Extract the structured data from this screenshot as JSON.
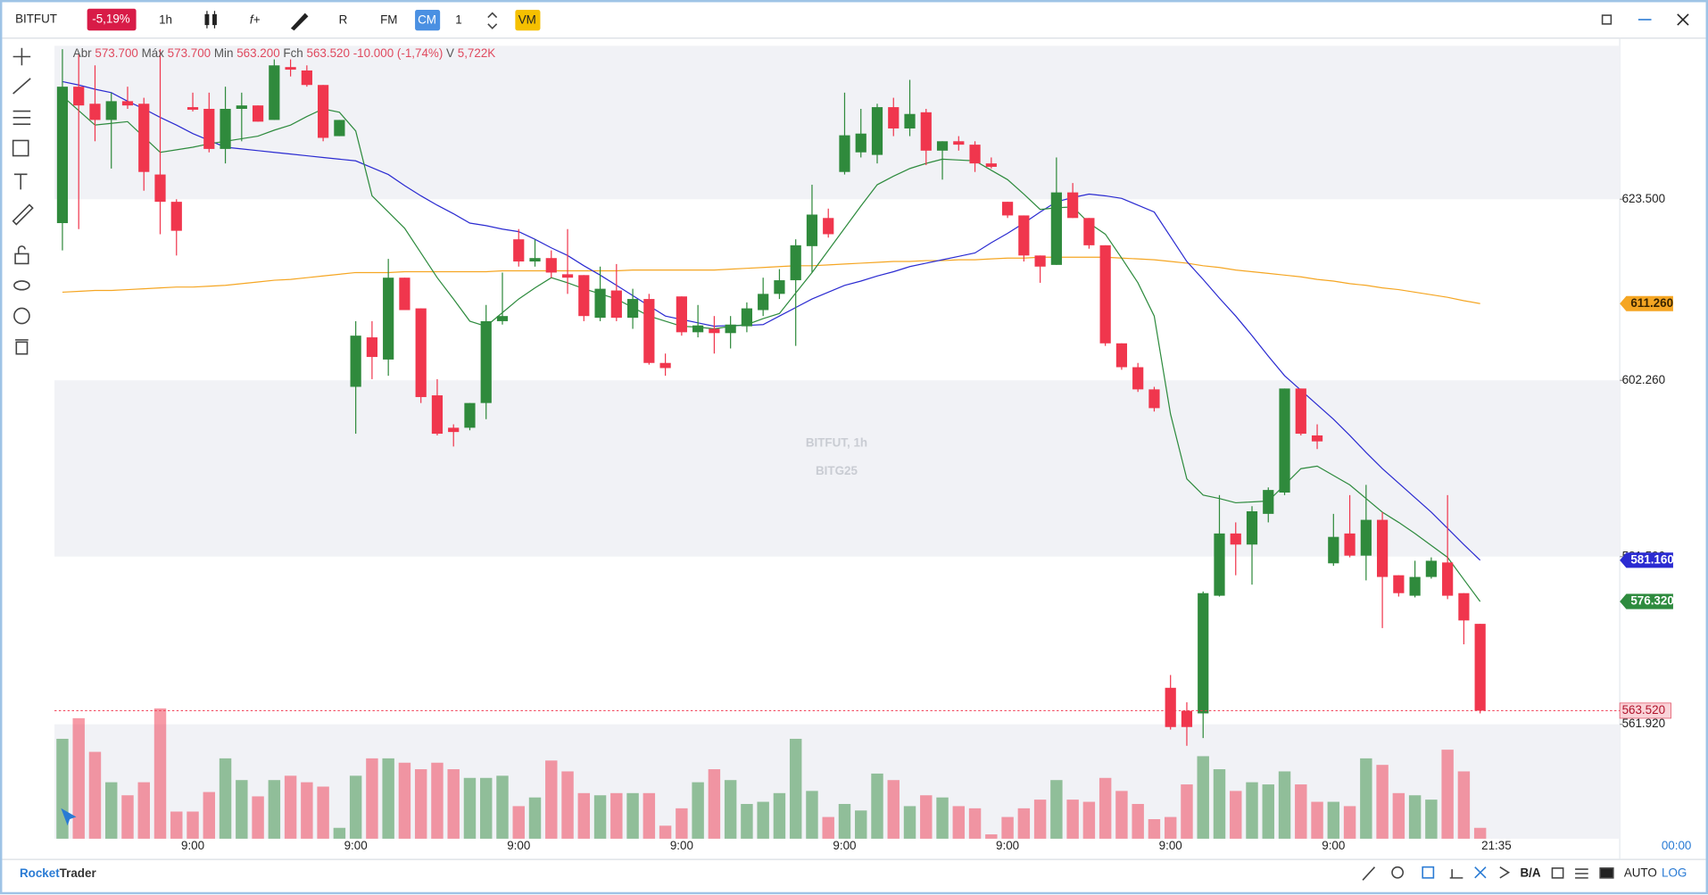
{
  "toolbar": {
    "symbol": "BITFUT",
    "change": "-5,19%",
    "interval": "1h",
    "function": "f+",
    "rx": "R",
    "fm": "FM",
    "cm": "CM",
    "quantity": "1",
    "vm": "VM"
  },
  "info": {
    "open_label": "Abr",
    "open": "573.700",
    "high_label": "Máx",
    "high": "573.700",
    "low_label": "Min",
    "low": "563.200",
    "close_label": "Fch",
    "close": "563.520",
    "change": "-10.000 (-1,74%)",
    "volume_label": "V",
    "volume": "5,722K"
  },
  "watermark": {
    "title": "BITFUT, 1h",
    "subtitle": "BITG25"
  },
  "chart_data": {
    "type": "candlestick",
    "categories": [
      null,
      null,
      null,
      null,
      null,
      null,
      null,
      null,
      "9:00",
      null,
      null,
      null,
      null,
      null,
      null,
      null,
      null,
      null,
      "9:00",
      null,
      null,
      null,
      null,
      null,
      null,
      null,
      null,
      null,
      "9:00",
      null,
      null,
      null,
      null,
      null,
      null,
      null,
      null,
      null,
      "9:00",
      null,
      null,
      null,
      null,
      null,
      null,
      null,
      null,
      null,
      "9:00",
      null,
      null,
      null,
      null,
      null,
      null,
      null,
      null,
      null,
      "9:00",
      null,
      null,
      null,
      null,
      null,
      null,
      null,
      null,
      null,
      "9:00",
      null,
      null,
      null,
      null,
      null,
      null,
      null,
      null,
      null,
      "9:00",
      null,
      null,
      null,
      null,
      null,
      null,
      null,
      null,
      null
    ],
    "open": [
      620.7,
      636.7,
      634.7,
      632.8,
      635.0,
      634.7,
      626.4,
      623.2,
      634.3,
      634.1,
      629.4,
      634.1,
      634.5,
      632.8,
      639.0,
      638.6,
      636.9,
      630.9,
      601.5,
      607.3,
      604.7,
      614.3,
      610.7,
      600.5,
      596.7,
      596.7,
      599.6,
      609.2,
      618.8,
      616.2,
      616.6,
      614.7,
      614.6,
      609.6,
      612.8,
      609.6,
      611.8,
      604.3,
      612.1,
      607.9,
      608.3,
      607.8,
      608.6,
      610.5,
      612.4,
      614.0,
      618.0,
      621.3,
      626.7,
      629.0,
      628.7,
      634.3,
      631.8,
      633.7,
      629.2,
      630.3,
      629.9,
      627.7,
      623.2,
      621.6,
      616.9,
      615.8,
      624.3,
      621.3,
      618.1,
      606.6,
      603.8,
      601.2,
      566.2,
      563.5,
      563.2,
      577.0,
      584.3,
      583.0,
      586.6,
      589.1,
      601.3,
      595.8,
      580.8,
      584.3,
      581.7,
      585.9,
      579.4,
      577.0,
      579.2,
      580.9,
      577.3,
      573.7
    ],
    "high": [
      641.1,
      640.5,
      639.2,
      636.0,
      636.7,
      635.4,
      641.1,
      623.5,
      636.0,
      636.0,
      636.7,
      636.0,
      634.5,
      639.9,
      639.9,
      639.2,
      636.9,
      632.8,
      609.2,
      609.2,
      616.5,
      614.3,
      610.7,
      602.4,
      597.1,
      599.6,
      611.1,
      614.9,
      620.0,
      618.8,
      617.5,
      620.0,
      614.6,
      615.6,
      615.9,
      613.0,
      612.4,
      605.4,
      612.1,
      611.1,
      609.8,
      609.8,
      611.4,
      614.3,
      615.3,
      618.8,
      625.2,
      622.4,
      636.0,
      634.1,
      634.7,
      635.4,
      637.5,
      634.1,
      630.3,
      630.9,
      630.3,
      628.4,
      623.2,
      621.6,
      616.9,
      628.4,
      625.4,
      621.3,
      618.1,
      606.6,
      604.3,
      601.5,
      567.7,
      564.5,
      577.5,
      588.8,
      585.6,
      587.5,
      589.7,
      601.3,
      601.3,
      597.1,
      586.6,
      588.8,
      590.0,
      586.8,
      579.4,
      581.1,
      581.5,
      588.8,
      577.3,
      573.7
    ],
    "low": [
      617.5,
      620.0,
      630.3,
      627.1,
      634.1,
      624.5,
      619.4,
      616.9,
      633.8,
      629.0,
      627.7,
      630.3,
      632.6,
      632.8,
      637.9,
      636.7,
      630.3,
      630.9,
      596.0,
      602.4,
      602.8,
      610.5,
      599.6,
      595.8,
      594.5,
      596.4,
      597.7,
      608.8,
      615.6,
      615.6,
      614.3,
      612.4,
      609.2,
      609.2,
      609.2,
      608.3,
      604.1,
      602.8,
      607.5,
      607.3,
      605.4,
      606.0,
      607.9,
      609.8,
      611.8,
      606.3,
      614.9,
      619.0,
      626.4,
      628.4,
      627.7,
      630.9,
      630.9,
      627.5,
      625.8,
      629.2,
      626.7,
      627.1,
      621.3,
      616.2,
      613.7,
      615.8,
      621.3,
      617.7,
      606.3,
      603.5,
      600.9,
      598.6,
      561.3,
      559.4,
      560.3,
      576.9,
      579.4,
      578.3,
      585.6,
      588.8,
      595.8,
      594.2,
      580.5,
      581.5,
      578.8,
      573.2,
      576.9,
      576.8,
      579.0,
      576.6,
      571.3,
      563.2
    ],
    "close": [
      636.7,
      634.5,
      632.8,
      635.0,
      634.5,
      626.7,
      623.2,
      619.8,
      634.0,
      629.4,
      634.1,
      634.5,
      632.6,
      639.2,
      638.7,
      636.9,
      630.7,
      632.8,
      607.5,
      605.0,
      614.3,
      610.5,
      600.3,
      596.0,
      596.2,
      599.6,
      609.2,
      609.8,
      616.2,
      616.6,
      614.9,
      614.3,
      609.8,
      613.0,
      609.6,
      611.8,
      604.3,
      603.7,
      607.9,
      608.7,
      607.8,
      608.8,
      610.7,
      612.4,
      614.0,
      618.1,
      621.7,
      619.4,
      631.0,
      631.2,
      634.3,
      631.8,
      633.5,
      629.2,
      630.3,
      629.9,
      627.7,
      627.3,
      621.6,
      616.9,
      615.6,
      624.3,
      621.3,
      618.1,
      606.6,
      603.8,
      601.2,
      599.0,
      561.6,
      561.6,
      577.3,
      584.3,
      583.0,
      586.9,
      589.4,
      601.3,
      596.0,
      595.1,
      583.9,
      581.7,
      585.9,
      579.2,
      577.3,
      579.2,
      581.1,
      577.0,
      574.1,
      563.52
    ],
    "volume": [
      52624,
      63492,
      45760,
      29744,
      22880,
      29744,
      68640,
      14300,
      14300,
      24596,
      42328,
      30888,
      22308,
      30888,
      33176,
      29744,
      27456,
      5720,
      33176,
      42328,
      42328,
      40040,
      36608,
      40040,
      36608,
      32032,
      32032,
      33176,
      17160,
      21736,
      41184,
      35464,
      24024,
      22880,
      24024,
      24024,
      24024,
      6864,
      16016,
      29744,
      36608,
      30888,
      18304,
      19448,
      24024,
      52624,
      25168,
      11440,
      18304,
      14872,
      34320,
      30888,
      17160,
      22880,
      21736,
      17160,
      16016,
      2288,
      11440,
      16016,
      20592,
      30888,
      20592,
      19448,
      32032,
      25168,
      18304,
      10296,
      11440,
      28600,
      43472,
      36608,
      25168,
      29744,
      28600,
      35464,
      28600,
      19448,
      19448,
      17160,
      42328,
      38896,
      24024,
      22880,
      20592,
      46904,
      35464,
      5722
    ],
    "up_color": "#2f8a3c",
    "down_color": "#f0364d",
    "ylim": [
      548.5,
      641.5
    ],
    "yticks": [
      {
        "value": 623.5,
        "label": "623.500"
      },
      {
        "value": 602.26,
        "label": "602.260"
      },
      {
        "value": 581.59,
        "label": "581.590"
      },
      {
        "value": 561.92,
        "label": "561.920"
      }
    ],
    "volume_lim": [
      0,
      70000
    ],
    "series": [
      {
        "color": "#f5a623",
        "last_label": "611.260",
        "values": [
          612.6,
          612.7,
          612.8,
          612.8,
          612.9,
          613.0,
          613.1,
          613.2,
          613.2,
          613.3,
          613.4,
          613.6,
          613.8,
          614.0,
          614.1,
          614.3,
          614.5,
          614.7,
          614.9,
          614.9,
          614.9,
          615.0,
          615.0,
          615.0,
          615.0,
          615.0,
          615.0,
          615.1,
          615.1,
          615.1,
          615.1,
          615.1,
          615.1,
          615.1,
          615.1,
          615.2,
          615.2,
          615.2,
          615.2,
          615.2,
          615.2,
          615.3,
          615.4,
          615.5,
          615.6,
          615.7,
          615.7,
          615.8,
          615.9,
          616.0,
          616.1,
          616.2,
          616.2,
          616.3,
          616.3,
          616.4,
          616.4,
          616.5,
          616.6,
          616.6,
          616.7,
          616.7,
          616.7,
          616.7,
          616.7,
          616.6,
          616.5,
          616.4,
          616.2,
          616.0,
          615.7,
          615.5,
          615.2,
          615.0,
          614.8,
          614.6,
          614.4,
          614.1,
          613.9,
          613.6,
          613.4,
          613.1,
          612.9,
          612.6,
          612.3,
          612.0,
          611.6,
          611.26
        ]
      },
      {
        "color": "#2b2bd1",
        "last_label": "581.160",
        "values": [
          637.3,
          636.9,
          636.4,
          636.0,
          635.0,
          634.1,
          633.1,
          632.2,
          631.2,
          630.4,
          629.6,
          629.4,
          629.2,
          629.0,
          628.8,
          628.6,
          628.4,
          628.2,
          628.0,
          627.2,
          626.4,
          625.1,
          623.9,
          622.8,
          621.8,
          620.7,
          620.4,
          620.0,
          619.7,
          618.8,
          617.8,
          616.9,
          615.7,
          614.6,
          613.4,
          612.2,
          611.0,
          609.8,
          609.4,
          609.0,
          608.6,
          608.7,
          608.7,
          608.8,
          609.8,
          610.8,
          611.8,
          612.6,
          613.4,
          613.9,
          614.5,
          615.0,
          615.6,
          616.0,
          616.4,
          616.8,
          617.2,
          618.4,
          619.5,
          620.7,
          622.0,
          623.2,
          623.7,
          624.1,
          623.9,
          623.6,
          622.8,
          622.0,
          619.1,
          616.2,
          614.1,
          611.9,
          609.8,
          607.5,
          605.1,
          602.8,
          601.1,
          599.4,
          597.7,
          595.8,
          593.8,
          591.9,
          590.2,
          588.5,
          586.8,
          584.9,
          583.0,
          581.16
        ]
      },
      {
        "color": "#2e8b3e",
        "last_label": "576.320",
        "values": [
          635.6,
          633.9,
          632.2,
          632.4,
          632.6,
          630.8,
          629.0,
          629.3,
          629.6,
          630.0,
          630.3,
          630.6,
          630.9,
          631.6,
          632.2,
          633.2,
          634.1,
          633.7,
          631.5,
          623.9,
          622.0,
          620.1,
          617.2,
          614.3,
          611.8,
          609.2,
          608.6,
          610.2,
          611.8,
          613.1,
          614.3,
          613.7,
          613.0,
          612.4,
          611.8,
          610.8,
          609.8,
          609.2,
          608.6,
          608.5,
          608.3,
          608.6,
          608.8,
          609.5,
          610.1,
          612.5,
          614.9,
          617.5,
          620.1,
          622.7,
          625.2,
          626.2,
          627.1,
          627.7,
          628.2,
          628.1,
          628.0,
          626.9,
          625.8,
          624.1,
          622.3,
          622.5,
          622.6,
          620.7,
          619.4,
          616.6,
          613.7,
          609.8,
          598.3,
          590.7,
          588.8,
          588.4,
          587.9,
          588.0,
          588.1,
          590.0,
          591.9,
          592.2,
          591.1,
          590.0,
          588.4,
          586.8,
          585.6,
          584.3,
          582.9,
          581.5,
          578.9,
          576.32
        ]
      }
    ],
    "last_price_label": "563.520",
    "time_label": "21:35",
    "corner_time": "00:00"
  },
  "footer": {
    "brand_a": "Rocket",
    "brand_b": "Trader",
    "ba": "B/A",
    "auto": "AUTO",
    "log": "LOG"
  }
}
